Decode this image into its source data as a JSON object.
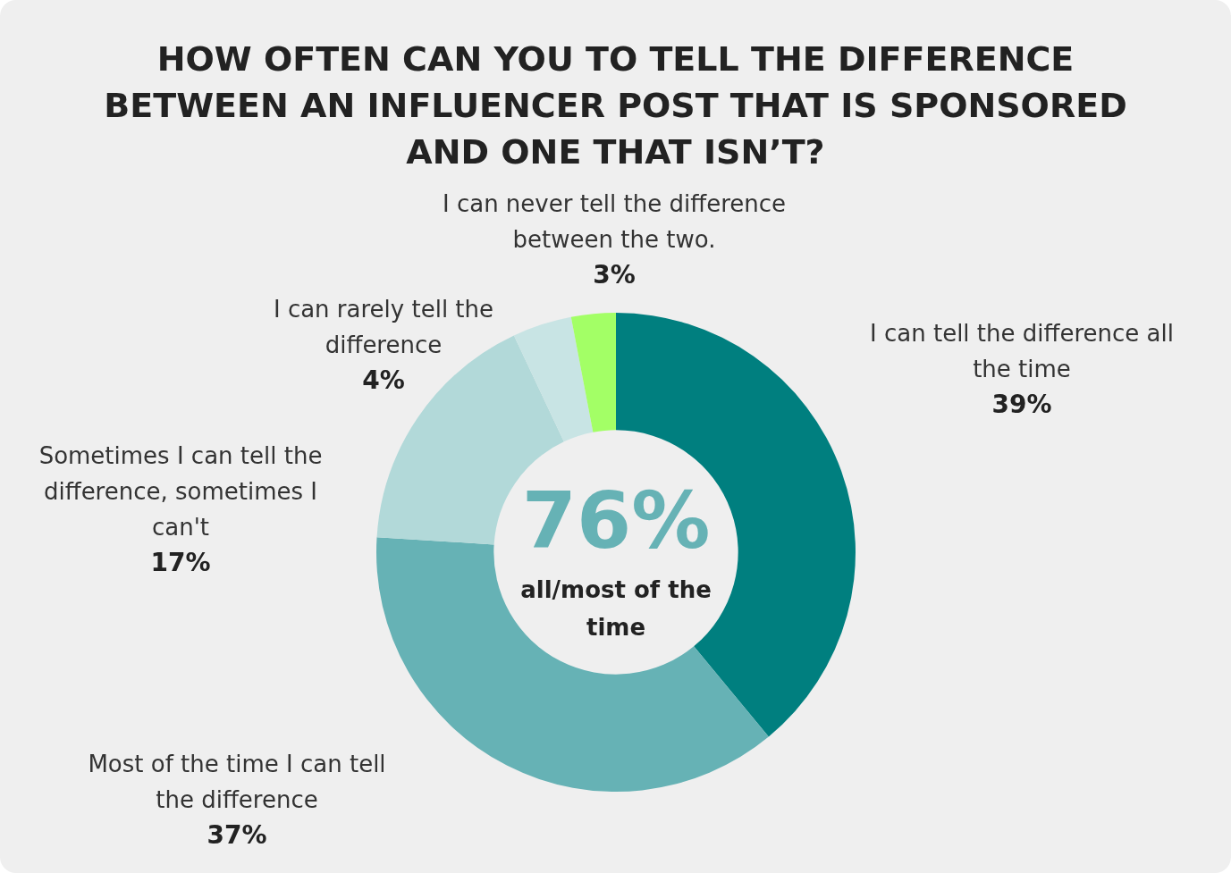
{
  "chart_data": {
    "type": "donut",
    "title": "HOW OFTEN CAN YOU TO TELL THE DIFFERENCE BETWEEN AN INFLUENCER POST THAT IS SPONSORED AND ONE THAT ISN’T?",
    "categories": [
      "I can tell the difference all the time",
      "Most of the time I can tell the difference",
      "Sometimes I can tell the difference, sometimes I can't",
      "I can rarely tell the difference",
      "I can never tell the difference between the two."
    ],
    "values": [
      39,
      37,
      17,
      4,
      3
    ],
    "value_labels": [
      "39%",
      "37%",
      "17%",
      "4%",
      "3%"
    ],
    "colors": [
      "#007f7f",
      "#66b2b5",
      "#b2d9d9",
      "#c8e4e4",
      "#a3ff66"
    ],
    "annotations": [
      "76%",
      "all/most of the time"
    ],
    "legend": false
  }
}
